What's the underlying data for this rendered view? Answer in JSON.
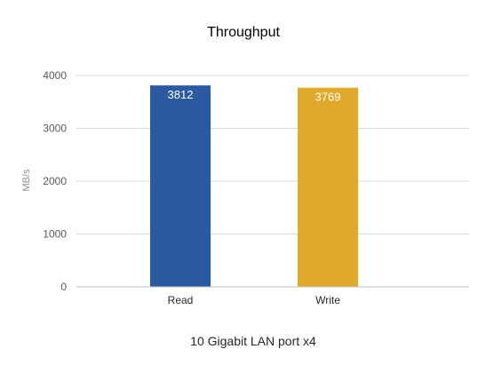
{
  "chart_data": {
    "type": "bar",
    "title": "Throughput",
    "ylabel": "MB/s",
    "xlabel": "10 Gigabit LAN port x4",
    "categories": [
      "Read",
      "Write"
    ],
    "values": [
      3812,
      3769
    ],
    "bar_colors": [
      "#2b5aa0",
      "#e2a82c"
    ],
    "ylim": [
      0,
      4000
    ],
    "yticks": [
      0,
      1000,
      2000,
      3000,
      4000
    ],
    "grid": true,
    "legend": "none",
    "data_labels": true
  },
  "colors": {
    "grid": "#d9d9d9",
    "axis": "#bfbfbf"
  }
}
